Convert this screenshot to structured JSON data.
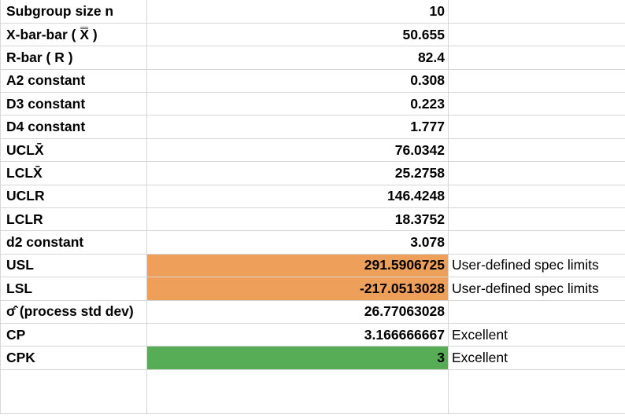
{
  "sheet": {
    "rows": [
      {
        "label": "Subgroup size n",
        "value": "10",
        "note": ""
      },
      {
        "label": "X-bar-bar ( X̿ )",
        "value": "50.655",
        "note": ""
      },
      {
        "label": "R-bar ( R )",
        "value": "82.4",
        "note": ""
      },
      {
        "label": "A2 constant",
        "value": "0.308",
        "note": ""
      },
      {
        "label": "D3 constant",
        "value": "0.223",
        "note": ""
      },
      {
        "label": "D4 constant",
        "value": "1.777",
        "note": ""
      },
      {
        "label": "UCLX̄",
        "value": "76.0342",
        "note": ""
      },
      {
        "label": "LCLX̄",
        "value": "25.2758",
        "note": ""
      },
      {
        "label": "UCLR",
        "value": "146.4248",
        "note": ""
      },
      {
        "label": "LCLR",
        "value": "18.3752",
        "note": ""
      },
      {
        "label": "d2 constant",
        "value": "3.078",
        "note": ""
      },
      {
        "label": "USL",
        "value": "291.5906725",
        "note": "User-defined spec limits"
      },
      {
        "label": "LSL",
        "value": "-217.0513028",
        "note": "User-defined spec limits"
      },
      {
        "label": "σ̂ (process std dev)",
        "value": "26.77063028",
        "note": ""
      },
      {
        "label": "CP",
        "value": "3.166666667",
        "note": "Excellent"
      },
      {
        "label": "CPK",
        "value": "3",
        "note": "Excellent"
      }
    ],
    "colors": {
      "spec_limit_fill": "#ee9f5a",
      "cpk_fill": "#56ad55",
      "gridline": "#d6d6d6"
    }
  }
}
